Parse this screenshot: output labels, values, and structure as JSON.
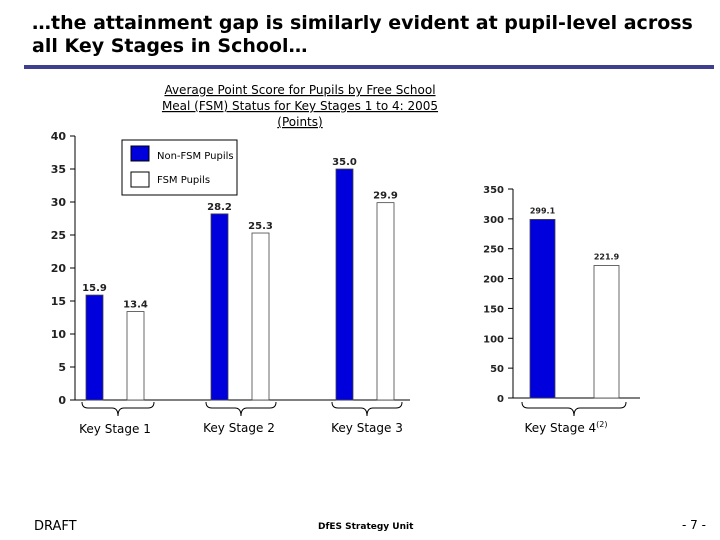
{
  "slide": {
    "title": "…the attainment gap is similarly evident at pupil-level across all Key Stages in School…",
    "footer_draft": "DRAFT",
    "footer_unit": "DfES Strategy Unit",
    "page_number": "- 7 -"
  },
  "colors": {
    "non_fsm": "#0000dd",
    "fsm": "#ffffff",
    "title_rule": "#3f3f8f"
  },
  "chart_data": [
    {
      "type": "bar",
      "title": "Average Point Score for Pupils by Free School Meal (FSM) Status for Key Stages 1 to 4: 2005 (Points)",
      "title_lines": [
        "Average Point Score for Pupils by Free School",
        "Meal (FSM) Status for Key Stages 1 to 4: 2005",
        "(Points)"
      ],
      "categories": [
        "Key Stage 1",
        "Key Stage 2",
        "Key Stage 3"
      ],
      "series": [
        {
          "name": "Non-FSM Pupils",
          "values": [
            15.9,
            28.2,
            35.0
          ],
          "labels": [
            "15.9",
            "28.2",
            "35.0"
          ]
        },
        {
          "name": "FSM Pupils",
          "values": [
            13.4,
            25.3,
            29.9
          ],
          "labels": [
            "13.4",
            "25.3",
            "29.9"
          ]
        }
      ],
      "ylim": [
        0,
        40
      ],
      "yticks": [
        "0",
        "5",
        "10",
        "15",
        "20",
        "25",
        "30",
        "35",
        "40"
      ],
      "legend_position": "top-left",
      "grid": false
    },
    {
      "type": "bar",
      "categories": [
        "Key Stage 4"
      ],
      "category_superscript": "(2)",
      "series": [
        {
          "name": "Non-FSM Pupils",
          "values": [
            299.1
          ],
          "labels": [
            "299.1"
          ]
        },
        {
          "name": "FSM Pupils",
          "values": [
            221.9
          ],
          "labels": [
            "221.9"
          ]
        }
      ],
      "ylim": [
        0,
        350
      ],
      "yticks": [
        "0",
        "50",
        "100",
        "150",
        "200",
        "250",
        "300",
        "350"
      ],
      "grid": false
    }
  ]
}
